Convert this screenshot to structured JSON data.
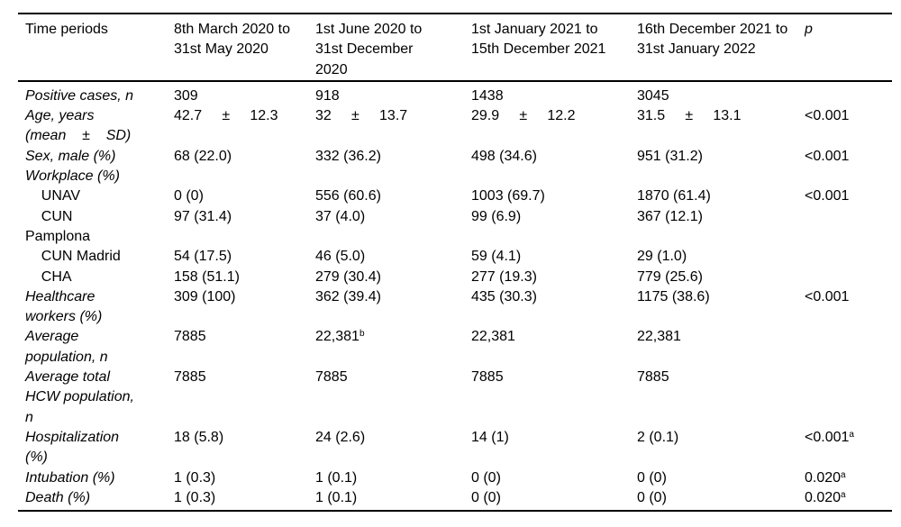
{
  "table": {
    "columns": [
      "Time periods",
      "8th March 2020 to\n31st May 2020",
      "1st June 2020 to\n31st December\n2020",
      "1st January 2021 to\n15th December 2021",
      "16th December 2021 to\n31st January 2022",
      "p"
    ],
    "rows": [
      {
        "label": "Positive cases, n",
        "cells": [
          {
            "t": "309"
          },
          {
            "t": "918"
          },
          {
            "t": "1438"
          },
          {
            "t": "3045"
          },
          {
            "t": ""
          }
        ]
      },
      {
        "label": "Age, years\n(mean    ±    SD)",
        "cells": [
          {
            "t": "42.7     ±     12.3"
          },
          {
            "t": "32     ±     13.7"
          },
          {
            "t": "29.9     ±     12.2"
          },
          {
            "t": "31.5     ±     13.1"
          },
          {
            "t": "<0.001"
          }
        ]
      },
      {
        "label": "Sex, male (%)",
        "cells": [
          {
            "t": "68 (22.0)"
          },
          {
            "t": "332 (36.2)"
          },
          {
            "t": "498 (34.6)"
          },
          {
            "t": "951 (31.2)"
          },
          {
            "t": "<0.001"
          }
        ]
      },
      {
        "label": "Workplace (%)",
        "cells": [
          {
            "t": ""
          },
          {
            "t": ""
          },
          {
            "t": ""
          },
          {
            "t": ""
          },
          {
            "t": ""
          }
        ]
      },
      {
        "label": "    UNAV",
        "cells": [
          {
            "t": "0 (0)"
          },
          {
            "t": "556 (60.6)"
          },
          {
            "t": "1003 (69.7)"
          },
          {
            "t": "1870 (61.4)"
          },
          {
            "t": "<0.001"
          }
        ]
      },
      {
        "label": "    CUN\nPamplona",
        "cells": [
          {
            "t": "97 (31.4)"
          },
          {
            "t": "37 (4.0)"
          },
          {
            "t": "99 (6.9)"
          },
          {
            "t": "367 (12.1)"
          },
          {
            "t": ""
          }
        ]
      },
      {
        "label": "    CUN Madrid",
        "cells": [
          {
            "t": "54 (17.5)"
          },
          {
            "t": "46 (5.0)"
          },
          {
            "t": "59 (4.1)"
          },
          {
            "t": "29 (1.0)"
          },
          {
            "t": ""
          }
        ]
      },
      {
        "label": "    CHA",
        "cells": [
          {
            "t": "158 (51.1)"
          },
          {
            "t": "279 (30.4)"
          },
          {
            "t": "277 (19.3)"
          },
          {
            "t": "779 (25.6)"
          },
          {
            "t": ""
          }
        ]
      },
      {
        "label": "Healthcare\nworkers (%)",
        "cells": [
          {
            "t": "309 (100)"
          },
          {
            "t": "362 (39.4)"
          },
          {
            "t": "435 (30.3)"
          },
          {
            "t": "1175 (38.6)"
          },
          {
            "t": "<0.001"
          }
        ]
      },
      {
        "label": "Average\npopulation, n",
        "cells": [
          {
            "t": "7885"
          },
          {
            "t": "22,381",
            "s": "b"
          },
          {
            "t": "22,381"
          },
          {
            "t": "22,381"
          },
          {
            "t": ""
          }
        ]
      },
      {
        "label": "Average total\nHCW population,\nn",
        "cells": [
          {
            "t": "7885"
          },
          {
            "t": "7885"
          },
          {
            "t": "7885"
          },
          {
            "t": "7885"
          },
          {
            "t": ""
          }
        ]
      },
      {
        "label": "Hospitalization\n(%)",
        "cells": [
          {
            "t": "18 (5.8)"
          },
          {
            "t": "24 (2.6)"
          },
          {
            "t": "14 (1)"
          },
          {
            "t": "2 (0.1)"
          },
          {
            "t": "<0.001",
            "s": "a"
          }
        ]
      },
      {
        "label": "Intubation (%)",
        "cells": [
          {
            "t": "1 (0.3)"
          },
          {
            "t": "1 (0.1)"
          },
          {
            "t": "0 (0)"
          },
          {
            "t": "0 (0)"
          },
          {
            "t": "0.020",
            "s": "a"
          }
        ]
      },
      {
        "label": "Death (%)",
        "cells": [
          {
            "t": "1 (0.3)"
          },
          {
            "t": "1 (0.1)"
          },
          {
            "t": "0 (0)"
          },
          {
            "t": "0 (0)"
          },
          {
            "t": "0.020",
            "s": "a"
          }
        ]
      }
    ]
  }
}
